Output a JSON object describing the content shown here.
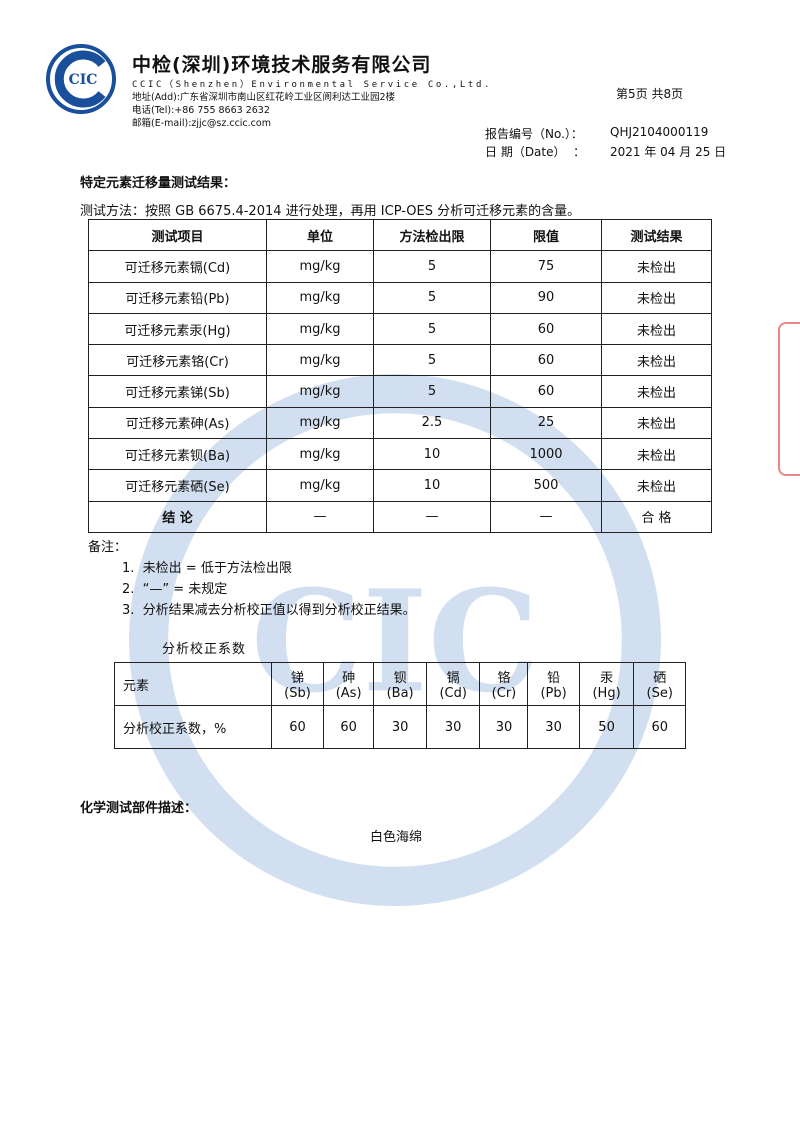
{
  "header": {
    "company_cn": "中检(深圳)环境技术服务有限公司",
    "company_en": "CCIC（Shenzhen）Environmental Service Co.,Ltd.",
    "address": "地址(Add):广东省深圳市南山区红花岭工业区阆利达工业园2楼",
    "tel": "电话(Tel):+86 755 8663 2632",
    "email": "邮箱(E-mail):zjjc@sz.ccic.com",
    "logo_text": "CIC",
    "page": "第5页 共8页",
    "report_no_label": "报告编号（No.）：",
    "report_no": "QHJ2104000119",
    "date_label": "日 期（Date）  ：",
    "date": "2021 年 04 月 25 日"
  },
  "section1_title": "特定元素迁移量测试结果：",
  "method": "测试方法：按照 GB 6675.4-2014 进行处理，再用 ICP-OES 分析可迁移元素的含量。",
  "table1": {
    "headers": [
      "测试项目",
      "单位",
      "方法检出限",
      "限值",
      "测试结果"
    ],
    "rows": [
      [
        "可迁移元素镉(Cd)",
        "mg/kg",
        "5",
        "75",
        "未检出"
      ],
      [
        "可迁移元素铅(Pb)",
        "mg/kg",
        "5",
        "90",
        "未检出"
      ],
      [
        "可迁移元素汞(Hg)",
        "mg/kg",
        "5",
        "60",
        "未检出"
      ],
      [
        "可迁移元素铬(Cr)",
        "mg/kg",
        "5",
        "60",
        "未检出"
      ],
      [
        "可迁移元素锑(Sb)",
        "mg/kg",
        "5",
        "60",
        "未检出"
      ],
      [
        "可迁移元素砷(As)",
        "mg/kg",
        "2.5",
        "25",
        "未检出"
      ],
      [
        "可迁移元素钡(Ba)",
        "mg/kg",
        "10",
        "1000",
        "未检出"
      ],
      [
        "可迁移元素硒(Se)",
        "mg/kg",
        "10",
        "500",
        "未检出"
      ],
      [
        "结 论",
        "—",
        "—",
        "—",
        "合 格"
      ]
    ]
  },
  "notes": {
    "title": "备注：",
    "items": [
      "1.  未检出 = 低于方法检出限",
      "2.  “—” = 未规定",
      "3.  分析结果减去分析校正值以得到分析校正结果。"
    ]
  },
  "table2": {
    "title": "分析校正系数",
    "row1_label": "元素",
    "elements": [
      [
        "锑",
        "(Sb)"
      ],
      [
        "砷",
        "(As)"
      ],
      [
        "钡",
        "(Ba)"
      ],
      [
        "镉",
        "(Cd)"
      ],
      [
        "铬",
        "(Cr)"
      ],
      [
        "铅",
        "(Pb)"
      ],
      [
        "汞",
        "(Hg)"
      ],
      [
        "硒",
        "(Se)"
      ]
    ],
    "row2_label": "分析校正系数，%",
    "values": [
      "60",
      "60",
      "30",
      "30",
      "30",
      "30",
      "50",
      "60"
    ]
  },
  "section2_title": "化学测试部件描述：",
  "part_description": "白色海绵",
  "colors": {
    "watermark": "#a9c4e6",
    "logo": "#1a4f9c"
  }
}
